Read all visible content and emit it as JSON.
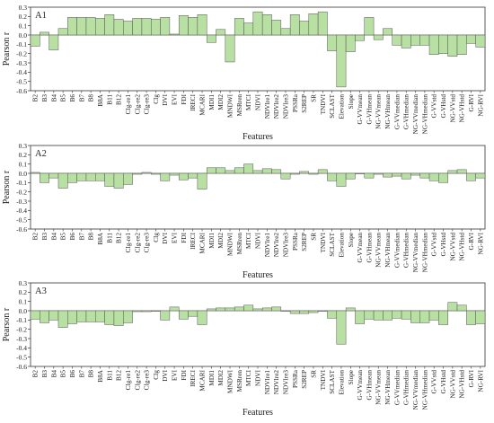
{
  "chart_data": [
    {
      "type": "bar",
      "panel_label": "A1",
      "ylabel": "Pearson r",
      "xlabel": "Features",
      "ylim": [
        -0.6,
        0.3
      ],
      "yticks": [
        -0.6,
        -0.5,
        -0.4,
        -0.3,
        -0.2,
        -0.1,
        0.0,
        0.1,
        0.2,
        0.3
      ],
      "categories": [
        "B2",
        "B3",
        "B4",
        "B5",
        "B6",
        "B7",
        "B8",
        "B8A",
        "B11",
        "B12",
        "CIg-re1",
        "CIg-re2",
        "CIg-re3",
        "CIg",
        "DVI",
        "EVI",
        "FDI",
        "IRECI",
        "MCARI",
        "MDI1",
        "MDI2",
        "MNDWI",
        "MSRren",
        "MTCI",
        "NDVI",
        "NDVIre1",
        "NDVIre2",
        "NDVIre3",
        "PSSRa",
        "S2REP",
        "SR",
        "TNDVI",
        "SCLAST",
        "Elevation",
        "Slope",
        "G-VVmean",
        "G-VHmean",
        "NG-VVmean",
        "NG-VHmean",
        "G-VVmedian",
        "G-VHmedian",
        "NG-VVmedian",
        "NG-VHmedian",
        "G-VVstd",
        "G-VHstd",
        "NG-VVstd",
        "NG-VHstd",
        "G-RVI",
        "NG-RVI"
      ],
      "values": [
        -0.12,
        0.03,
        -0.16,
        0.07,
        0.19,
        0.19,
        0.19,
        0.18,
        0.22,
        0.17,
        0.15,
        0.18,
        0.18,
        0.17,
        0.19,
        0.01,
        0.21,
        0.19,
        0.22,
        -0.08,
        0.06,
        -0.29,
        0.18,
        0.13,
        0.25,
        0.22,
        0.16,
        0.07,
        0.22,
        0.15,
        0.23,
        0.25,
        -0.17,
        -0.56,
        -0.18,
        -0.06,
        0.19,
        -0.05,
        0.07,
        -0.11,
        -0.14,
        -0.11,
        -0.11,
        -0.21,
        -0.2,
        -0.23,
        -0.21,
        -0.09,
        -0.13
      ],
      "bar_color": "#b9e0a3",
      "edge_color": "#555555"
    },
    {
      "type": "bar",
      "panel_label": "A2",
      "ylabel": "Pearson r",
      "xlabel": "Features",
      "ylim": [
        -0.6,
        0.3
      ],
      "yticks": [
        -0.6,
        -0.5,
        -0.4,
        -0.3,
        -0.2,
        -0.1,
        0.0,
        0.1,
        0.2,
        0.3
      ],
      "categories": [
        "B2",
        "B3",
        "B4",
        "B5",
        "B6",
        "B7",
        "B8",
        "B8A",
        "B11",
        "B12",
        "CIg-re1",
        "CIg-re2",
        "CIg-re3",
        "CIg",
        "DVI",
        "EVI",
        "FDI",
        "IRECI",
        "MCARI",
        "MDI1",
        "MDI2",
        "MNDWI",
        "MSRren",
        "MTCI",
        "NDVI",
        "NDVIre1",
        "NDVIre2",
        "NDVIre3",
        "PSSRa",
        "S2REP",
        "SR",
        "TNDVI",
        "SCLAST",
        "Elevation",
        "Slope",
        "G-VVmean",
        "G-VHmean",
        "NG-VVmean",
        "NG-VHmean",
        "G-VVmedian",
        "G-VHmedian",
        "NG-VVmedian",
        "NG-VHmedian",
        "G-VVstd",
        "G-VHstd",
        "NG-VVstd",
        "NG-VHstd",
        "G-RVI",
        "NG-RVI"
      ],
      "values": [
        0.01,
        -0.1,
        -0.05,
        -0.16,
        -0.1,
        -0.08,
        -0.08,
        -0.08,
        -0.14,
        -0.16,
        -0.12,
        -0.01,
        0.01,
        -0.01,
        -0.08,
        -0.02,
        -0.07,
        -0.05,
        -0.17,
        0.06,
        0.06,
        0.03,
        0.06,
        0.1,
        0.03,
        0.05,
        0.04,
        -0.06,
        -0.01,
        0.02,
        -0.01,
        0.04,
        -0.08,
        -0.14,
        -0.06,
        0.0,
        -0.05,
        -0.01,
        -0.04,
        -0.03,
        -0.06,
        -0.02,
        -0.05,
        -0.08,
        -0.1,
        0.03,
        0.04,
        -0.08,
        -0.05
      ],
      "bar_color": "#b9e0a3",
      "edge_color": "#555555"
    },
    {
      "type": "bar",
      "panel_label": "A3",
      "ylabel": "Pearson r",
      "xlabel": "Features",
      "ylim": [
        -0.6,
        0.3
      ],
      "yticks": [
        -0.6,
        -0.5,
        -0.4,
        -0.3,
        -0.2,
        -0.1,
        0.0,
        0.1,
        0.2,
        0.3
      ],
      "categories": [
        "B2",
        "B3",
        "B4",
        "B5",
        "B6",
        "B7",
        "B8",
        "B8A",
        "B11",
        "B12",
        "CIg-re1",
        "CIg-re2",
        "CIg-re3",
        "CIg",
        "DVI",
        "EVI",
        "FDI",
        "IRECI",
        "MCARI",
        "MDI1",
        "MDI2",
        "MNDWI",
        "MSRren",
        "MTCI",
        "NDVI",
        "NDVIre1",
        "NDVIre2",
        "NDVIre3",
        "PSSRa",
        "S2REP",
        "SR",
        "TNDVI",
        "SCLAST",
        "Elevation",
        "Slope",
        "G-VVmean",
        "G-VHmean",
        "NG-VVmean",
        "NG-VHmean",
        "G-VVmedian",
        "G-VHmedian",
        "NG-VVmedian",
        "NG-VHmedian",
        "G-VVstd",
        "G-VHstd",
        "NG-VVstd",
        "NG-VHstd",
        "G-RVI",
        "NG-RVI"
      ],
      "values": [
        -0.09,
        -0.13,
        -0.1,
        -0.18,
        -0.14,
        -0.12,
        -0.12,
        -0.12,
        -0.15,
        -0.16,
        -0.13,
        -0.01,
        -0.01,
        0.0,
        -0.1,
        0.04,
        -0.09,
        -0.06,
        -0.15,
        0.02,
        0.03,
        0.03,
        0.04,
        0.06,
        0.02,
        0.03,
        0.04,
        0.0,
        -0.03,
        -0.03,
        -0.02,
        0.0,
        -0.08,
        -0.36,
        0.03,
        -0.14,
        -0.09,
        -0.1,
        -0.1,
        -0.08,
        -0.09,
        -0.13,
        -0.13,
        -0.1,
        -0.15,
        0.09,
        0.06,
        -0.15,
        -0.14
      ],
      "bar_color": "#b9e0a3",
      "edge_color": "#555555"
    }
  ]
}
